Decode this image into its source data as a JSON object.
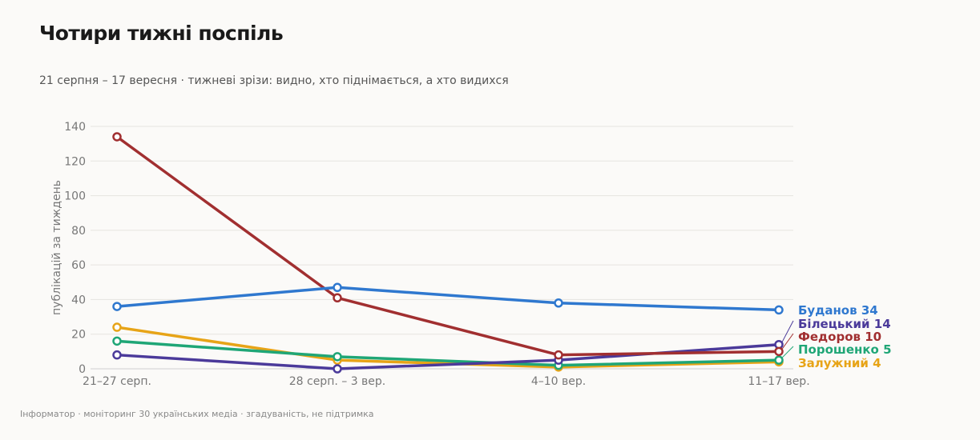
{
  "header": {
    "title": "Чотири тижні поспіль",
    "subtitle": "21 серпня – 17 вересня · тижневі зрізи: видно, хто піднімається, а хто видихся"
  },
  "footer": {
    "source": "Інформатор · моніторинг 30 українських медіа · згадуваність, не підтримка"
  },
  "chart_data": {
    "type": "line",
    "title": "Чотири тижні поспіль",
    "subtitle": "21 серпня – 17 вересня · тижневі зрізи: видно, хто піднімається, а хто видихся",
    "xlabel": "",
    "ylabel": "публікацій за тиждень",
    "categories": [
      "21–27 серп.",
      "28 серп. – 3 вер.",
      "4–10 вер.",
      "11–17 вер."
    ],
    "ylim": [
      0,
      140
    ],
    "yticks": [
      0,
      20,
      40,
      60,
      80,
      100,
      120,
      140
    ],
    "grid": true,
    "legend": "end-labels-right",
    "series": [
      {
        "name": "Буданов",
        "values": [
          36,
          47,
          38,
          34
        ],
        "color": "#2f78cf",
        "label": "Буданов 34"
      },
      {
        "name": "Білецький",
        "values": [
          8,
          0,
          5,
          14
        ],
        "color": "#4b3a9a",
        "label": "Білецький 14"
      },
      {
        "name": "Федоров",
        "values": [
          134,
          41,
          8,
          10
        ],
        "color": "#a12f30",
        "label": "Федоров 10"
      },
      {
        "name": "Порошенко",
        "values": [
          16,
          7,
          2,
          5
        ],
        "color": "#1fa676",
        "label": "Порошенко 5"
      },
      {
        "name": "Залужний",
        "values": [
          24,
          5,
          1,
          4
        ],
        "color": "#e7a417",
        "label": "Залужний 4"
      }
    ]
  }
}
